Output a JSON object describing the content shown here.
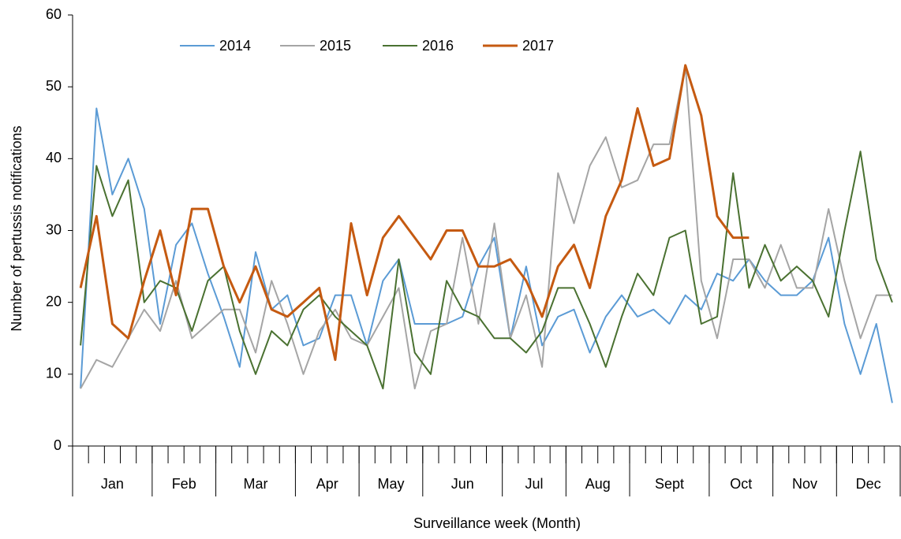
{
  "chart_data": {
    "type": "line",
    "x_label": "Surveillance week (Month)",
    "y_label": "Number  of pertussis notifications",
    "categories": [
      null,
      null,
      null,
      null,
      null,
      null,
      null,
      null,
      null,
      null,
      null,
      null,
      null,
      null,
      null,
      null,
      null,
      null,
      null,
      null,
      null,
      null,
      null,
      null,
      null,
      null,
      null,
      null,
      null,
      null,
      null,
      null,
      null,
      null,
      null,
      null,
      null,
      null,
      null,
      null,
      null,
      null,
      null,
      null,
      null,
      null,
      null,
      null,
      null,
      null,
      null,
      null
    ],
    "x_groups": [
      {
        "label": "Jan",
        "span": 5
      },
      {
        "label": "Feb",
        "span": 4
      },
      {
        "label": "Mar",
        "span": 5
      },
      {
        "label": "Apr",
        "span": 4
      },
      {
        "label": "May",
        "span": 4
      },
      {
        "label": "Jun",
        "span": 5
      },
      {
        "label": "Jul",
        "span": 4
      },
      {
        "label": "Aug",
        "span": 4
      },
      {
        "label": "Sept",
        "span": 5
      },
      {
        "label": "Oct",
        "span": 4
      },
      {
        "label": "Nov",
        "span": 4
      },
      {
        "label": "Dec",
        "span": 4
      }
    ],
    "ylim": [
      0,
      60
    ],
    "yticks": [
      0,
      10,
      20,
      30,
      40,
      50,
      60
    ],
    "grid": false,
    "legend": "top",
    "series": [
      {
        "name": "2014",
        "color": "#5b9bd5",
        "width": 2,
        "values": [
          8,
          47,
          35,
          40,
          33,
          17,
          28,
          31,
          24,
          18,
          11,
          27,
          19,
          21,
          14,
          15,
          21,
          21,
          14,
          23,
          26,
          17,
          17,
          17,
          18,
          25,
          29,
          15,
          25,
          14,
          18,
          19,
          13,
          18,
          21,
          18,
          19,
          17,
          21,
          19,
          24,
          23,
          26,
          23,
          21,
          21,
          23,
          29,
          17,
          10,
          17,
          6
        ]
      },
      {
        "name": "2015",
        "color": "#a5a5a5",
        "width": 2,
        "values": [
          8,
          12,
          11,
          15,
          19,
          16,
          23,
          15,
          17,
          19,
          19,
          13,
          23,
          17,
          10,
          16,
          19,
          15,
          14,
          18,
          22,
          8,
          16,
          17,
          29,
          17,
          31,
          15,
          21,
          11,
          38,
          31,
          39,
          43,
          36,
          37,
          42,
          42,
          53,
          23,
          15,
          26,
          26,
          22,
          28,
          22,
          22,
          33,
          23,
          15,
          21,
          21
        ]
      },
      {
        "name": "2016",
        "color": "#4a7131",
        "width": 2,
        "values": [
          14,
          39,
          32,
          37,
          20,
          23,
          22,
          16,
          23,
          25,
          16,
          10,
          16,
          14,
          19,
          21,
          18,
          16,
          14,
          8,
          26,
          13,
          10,
          23,
          19,
          18,
          15,
          15,
          13,
          16,
          22,
          22,
          17,
          11,
          18,
          24,
          21,
          29,
          30,
          17,
          18,
          38,
          22,
          28,
          23,
          25,
          23,
          18,
          30,
          41,
          26,
          20
        ]
      },
      {
        "name": "2017",
        "color": "#c55a11",
        "width": 3,
        "values": [
          22,
          32,
          17,
          15,
          23,
          30,
          21,
          33,
          33,
          25,
          20,
          25,
          19,
          18,
          20,
          22,
          12,
          31,
          21,
          29,
          32,
          29,
          26,
          30,
          30,
          25,
          25,
          26,
          23,
          18,
          25,
          28,
          22,
          32,
          37,
          47,
          39,
          40,
          53,
          46,
          32,
          29,
          29,
          null,
          null,
          null,
          null,
          null,
          null,
          null,
          null,
          null
        ]
      }
    ]
  }
}
